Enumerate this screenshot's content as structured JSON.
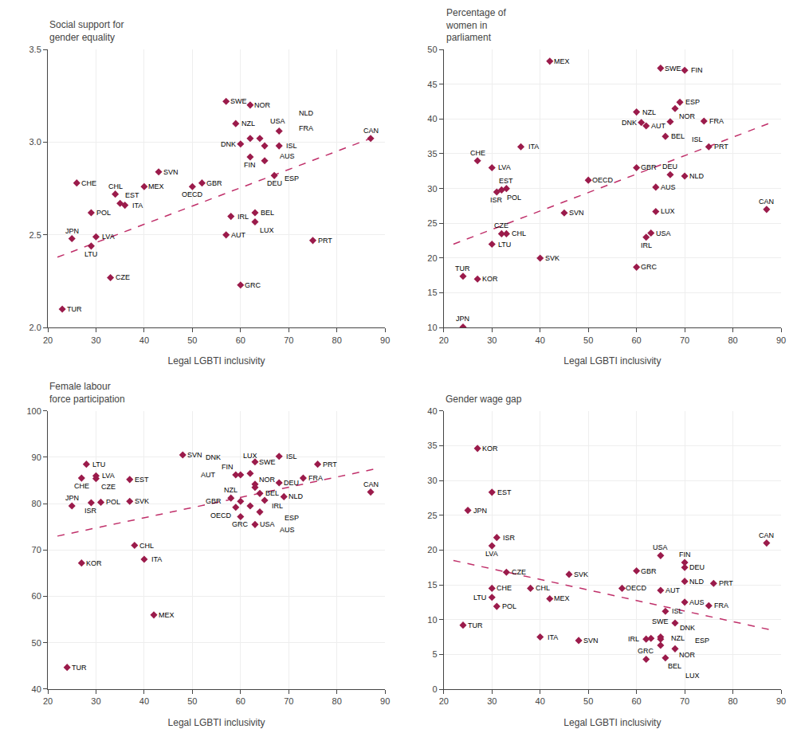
{
  "chart_data": [
    {
      "type": "scatter",
      "title": "Social support for\ngender equality",
      "x_label": "Legal LGBTI inclusivity",
      "xlim": [
        20,
        90
      ],
      "ylim": [
        2.0,
        3.5
      ],
      "xticks": [
        20,
        30,
        40,
        50,
        60,
        70,
        80,
        90
      ],
      "yticks": [
        {
          "value": 2.0,
          "label": "2.0"
        },
        2.5,
        {
          "value": 3.0,
          "label": "3.0"
        },
        3.5
      ],
      "grid": true,
      "marker": "diamond",
      "color": "#9B1B4B",
      "labels": [
        "TUR",
        "JPN",
        "LVA",
        "LTU",
        "CHE",
        "POL",
        "CZE",
        "EST",
        "CHL",
        "ITA",
        "MEX",
        "SVN",
        "GBR",
        "OECD",
        "IRL",
        "AUT",
        "GRC",
        "BEL",
        "LUX",
        "PRT",
        "SWE",
        "NOR",
        "NZL",
        "DNK",
        "USA",
        "AUS",
        "ISL",
        "FIN",
        "ESP",
        "FRA",
        "NLD",
        "DEU",
        "CAN"
      ],
      "x": [
        23,
        25,
        30,
        29,
        26,
        29,
        33,
        35,
        34,
        36,
        40,
        43,
        52,
        50,
        58,
        57,
        60,
        63,
        63,
        75,
        57,
        62,
        59,
        60,
        62,
        64,
        65,
        62,
        65,
        68,
        68,
        67,
        87
      ],
      "values": [
        2.1,
        2.48,
        2.49,
        2.44,
        2.78,
        2.62,
        2.27,
        2.67,
        2.72,
        2.66,
        2.76,
        2.84,
        2.78,
        2.76,
        2.6,
        2.5,
        2.23,
        2.62,
        2.57,
        2.47,
        3.22,
        3.2,
        3.1,
        2.99,
        3.02,
        3.02,
        2.98,
        2.92,
        2.9,
        2.98,
        3.06,
        2.82,
        3.02
      ],
      "trendline": {
        "x": [
          22,
          88
        ],
        "values": [
          2.38,
          3.03
        ],
        "color": "#C0306A",
        "line_style": "dashed"
      }
    },
    {
      "type": "scatter",
      "title": "Percentage of\nwomen in\nparliament",
      "x_label": "Legal LGBTI inclusivity",
      "xlim": [
        20,
        90
      ],
      "ylim": [
        10,
        50
      ],
      "xticks": [
        20,
        30,
        40,
        50,
        60,
        70,
        80,
        90
      ],
      "yticks": [
        10,
        15,
        20,
        25,
        30,
        35,
        40,
        45,
        50
      ],
      "grid": true,
      "marker": "diamond",
      "color": "#9B1B4B",
      "labels": [
        "JPN",
        "TUR",
        "KOR",
        "CHE",
        "LVA",
        "ISR",
        "POL",
        "EST",
        "LTU",
        "CZE",
        "CHL",
        "ITA",
        "SVK",
        "SVN",
        "MEX",
        "OECD",
        "GBR",
        "NZL",
        "DNK",
        "AUT",
        "GRC",
        "IRL",
        "USA",
        "AUS",
        "LUX",
        "BEL",
        "DEU",
        "NLD",
        "NOR",
        "ESP",
        "ISL",
        "SWE",
        "FIN",
        "FRA",
        "PRT",
        "CAN"
      ],
      "x": [
        24,
        24,
        27,
        27,
        30,
        31,
        32,
        33,
        30,
        32,
        33,
        36,
        40,
        45,
        42,
        50,
        60,
        60,
        61,
        62,
        60,
        62,
        63,
        64,
        64,
        66,
        67,
        70,
        68,
        69,
        67,
        65,
        70,
        74,
        75,
        87
      ],
      "values": [
        10.1,
        17.4,
        17.0,
        34.0,
        33.0,
        29.5,
        29.8,
        30.0,
        22.0,
        23.5,
        23.5,
        36.0,
        20.0,
        26.5,
        48.3,
        31.2,
        33.0,
        41.0,
        39.5,
        39.0,
        18.7,
        23.0,
        23.6,
        30.2,
        26.7,
        37.5,
        32.0,
        31.8,
        41.5,
        42.4,
        39.6,
        47.3,
        47.0,
        39.7,
        36.0,
        27.0
      ],
      "trendline": {
        "x": [
          22,
          88
        ],
        "values": [
          22.0,
          39.5
        ],
        "color": "#C0306A",
        "line_style": "dashed"
      }
    },
    {
      "type": "scatter",
      "title": "Female labour\nforce participation",
      "x_label": "Legal LGBTI inclusivity",
      "xlim": [
        20,
        90
      ],
      "ylim": [
        40,
        100
      ],
      "xticks": [
        20,
        30,
        40,
        50,
        60,
        70,
        80,
        90
      ],
      "yticks": [
        40,
        50,
        60,
        70,
        80,
        90,
        100
      ],
      "grid": true,
      "marker": "diamond",
      "color": "#9B1B4B",
      "labels": [
        "TUR",
        "JPN",
        "KOR",
        "ISR",
        "LTU",
        "CHE",
        "LVA",
        "CZE",
        "POL",
        "SVK",
        "EST",
        "CHL",
        "ITA",
        "MEX",
        "SVN",
        "NZL",
        "GBR",
        "GRC",
        "IRL",
        "OECD",
        "USA",
        "AUS",
        "BEL",
        "ESP",
        "NOR",
        "SWE",
        "FIN",
        "NLD",
        "AUT",
        "DNK",
        "LUX",
        "DEU",
        "ISL",
        "FRA",
        "PRT",
        "CAN"
      ],
      "x": [
        24,
        25,
        27,
        29,
        28,
        27,
        30,
        30,
        31,
        37,
        37,
        38,
        40,
        42,
        48,
        58,
        60,
        60,
        62,
        59,
        63,
        64,
        64,
        65,
        63,
        63,
        63,
        69,
        59,
        60,
        62,
        68,
        68,
        73,
        76,
        87
      ],
      "values": [
        44.7,
        79.5,
        67.2,
        80.2,
        88.5,
        85.5,
        86.0,
        85.4,
        80.3,
        80.5,
        85.2,
        71.0,
        68.0,
        56.0,
        90.5,
        81.2,
        80.5,
        77.2,
        79.5,
        79.2,
        75.5,
        78.2,
        82.2,
        80.7,
        83.5,
        89.0,
        84.2,
        81.5,
        86.2,
        86.2,
        86.5,
        84.5,
        90.2,
        85.5,
        88.5,
        82.5
      ],
      "trendline": {
        "x": [
          22,
          88
        ],
        "values": [
          73.0,
          87.5
        ],
        "color": "#C0306A",
        "line_style": "dashed"
      }
    },
    {
      "type": "scatter",
      "title": "Gender wage gap",
      "x_label": "Legal LGBTI inclusivity",
      "xlim": [
        20,
        90
      ],
      "ylim": [
        0,
        40
      ],
      "xticks": [
        20,
        30,
        40,
        50,
        60,
        70,
        80,
        90
      ],
      "yticks": [
        0,
        5,
        10,
        15,
        20,
        25,
        30,
        35,
        40
      ],
      "grid": true,
      "marker": "diamond",
      "color": "#9B1B4B",
      "labels": [
        "KOR",
        "JPN",
        "EST",
        "ISR",
        "LVA",
        "CZE",
        "CHE",
        "LTU",
        "TUR",
        "POL",
        "CHL",
        "MEX",
        "ITA",
        "SVK",
        "SVN",
        "OECD",
        "GRC",
        "GBR",
        "IRL",
        "NZL",
        "SWE",
        "AUT",
        "ISL",
        "NOR",
        "DNK",
        "BEL",
        "LUX",
        "AUS",
        "DEU",
        "NLD",
        "FIN",
        "USA",
        "FRA",
        "PRT",
        "ESP",
        "CAN"
      ],
      "x": [
        27,
        25,
        30,
        31,
        30,
        33,
        30,
        30,
        24,
        31,
        38,
        42,
        40,
        46,
        48,
        57,
        62,
        60,
        62,
        63,
        65,
        65,
        66,
        65,
        65,
        68,
        66,
        70,
        70,
        70,
        70,
        65,
        75,
        76,
        68,
        87
      ],
      "values": [
        34.6,
        25.7,
        28.3,
        21.8,
        20.6,
        16.8,
        14.5,
        13.2,
        9.2,
        11.9,
        14.5,
        13.0,
        7.5,
        16.5,
        7.0,
        14.5,
        4.3,
        17.0,
        7.2,
        7.3,
        7.2,
        14.2,
        11.2,
        7.5,
        6.3,
        5.8,
        4.5,
        12.5,
        17.5,
        15.5,
        18.2,
        19.2,
        12.0,
        15.2,
        9.5,
        21.0
      ],
      "trendline": {
        "x": [
          22,
          88
        ],
        "values": [
          18.5,
          8.5
        ],
        "color": "#C0306A",
        "line_style": "dashed"
      }
    }
  ]
}
